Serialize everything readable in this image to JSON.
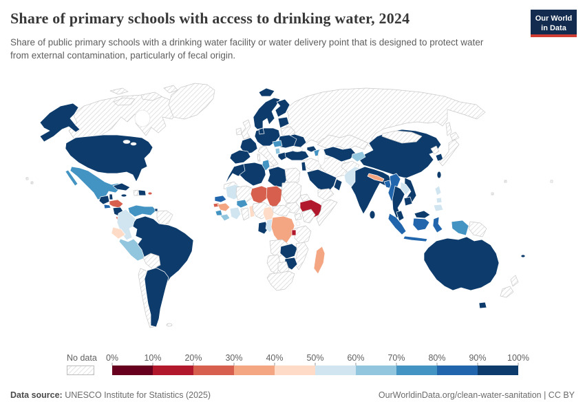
{
  "header": {
    "title": "Share of primary schools with access to drinking water, 2024",
    "subtitle": "Share of public primary schools with a drinking water facility or water delivery point that is designed to protect water from external contamination, particularly of fecal origin.",
    "logo": {
      "line1": "Our World",
      "line2": "in Data",
      "bg_color": "#122b4e",
      "accent_color": "#d13d33"
    }
  },
  "footer": {
    "datasource_label": "Data source:",
    "datasource_value": " UNESCO Institute for Statistics (2025)",
    "link": "OurWorldinData.org/clean-water-sanitation | CC BY"
  },
  "chart_data": {
    "type": "choropleth",
    "title": "Share of primary schools with access to drinking water, 2024",
    "year": "2024",
    "unit": "%",
    "no_data_label": "No data",
    "legend": {
      "tick_labels": [
        "0%",
        "10%",
        "20%",
        "30%",
        "40%",
        "50%",
        "60%",
        "70%",
        "80%",
        "90%",
        "100%"
      ],
      "position": "bottom"
    },
    "bins": [
      {
        "label": "0-10%",
        "color": "#67001f"
      },
      {
        "label": "10-20%",
        "color": "#b2182b"
      },
      {
        "label": "20-30%",
        "color": "#d6604d"
      },
      {
        "label": "30-40%",
        "color": "#f4a582"
      },
      {
        "label": "40-50%",
        "color": "#fddbc7"
      },
      {
        "label": "50-60%",
        "color": "#d1e5f0"
      },
      {
        "label": "60-70%",
        "color": "#92c5de"
      },
      {
        "label": "70-80%",
        "color": "#4393c3"
      },
      {
        "label": "80-90%",
        "color": "#2166ac"
      },
      {
        "label": "90-100%",
        "color": "#0d3c6c"
      }
    ],
    "regions": {
      "russia": -1,
      "canada": -1,
      "arctic-islands": -1,
      "greenland": -1,
      "usa": 9,
      "mexico": 7,
      "guatemala": 9,
      "belize": 9,
      "el-salvador": 8,
      "honduras": 2,
      "nicaragua": 9,
      "costa-rica": 2,
      "panama": 9,
      "cuba": 9,
      "jamaica": 9,
      "haiti": -1,
      "dominican-republic": 9,
      "puerto-rico": 2,
      "venezuela": 7,
      "trinidad-tobago": 9,
      "guyanas": -1,
      "colombia": 5,
      "ecuador": 4,
      "peru": 6,
      "brazil": 9,
      "bolivia": -1,
      "chile": -1,
      "argentina": 9,
      "falkland-islands": -1,
      "iceland": 9,
      "ireland": -1,
      "united-kingdom": -1,
      "scandinavia": 9,
      "finland": 9,
      "denmark": 9,
      "baltics": 9,
      "belarus": -1,
      "ukraine": 9,
      "balkans": 9,
      "central-europe": 9,
      "france": 9,
      "iberia": 9,
      "italy": -1,
      "hungary": 7,
      "albania": 6,
      "greece": 9,
      "turkey": 9,
      "georgia": 9,
      "azerbaijan": 7,
      "syria-iraq": -1,
      "israel-jordan": 9,
      "iran": -1,
      "saudi-arabia": 9,
      "yemen": -1,
      "oman": 9,
      "kazakhstan": -1,
      "uzbekistan-turkmenistan": 9,
      "kyrgyzstan-tajikistan": 6,
      "afghanistan": -1,
      "pakistan": 5,
      "india": 9,
      "nepal": 3,
      "bangladesh": 8,
      "sri-lanka": 9,
      "china": 9,
      "mongolia": -1,
      "north-korea": -1,
      "south-korea": 9,
      "japan": -1,
      "taiwan": 9,
      "myanmar": 8,
      "thailand": 9,
      "vietnam": 9,
      "cambodia": 9,
      "laos": 5,
      "malaysia": 9,
      "philippines": 5,
      "indonesia": 8,
      "west-papua": 7,
      "papua-new-guinea": -1,
      "australia": 9,
      "new-zealand": -1,
      "fiji": 9,
      "pacific-islands": -1,
      "hawaii": -1,
      "morocco": 9,
      "western-sahara": -1,
      "algeria": 9,
      "tunisia": 7,
      "libya": 9,
      "egypt": -1,
      "mauritania": 5,
      "mali": -1,
      "niger": 2,
      "chad": 2,
      "sudan": -1,
      "south-sudan": -1,
      "eritrea": -1,
      "djibouti": 8,
      "ethiopia": 1,
      "somalia": -1,
      "senegal": 8,
      "guinea-bissau": 2,
      "guinea": 3,
      "sierra-leone": 7,
      "liberia": 6,
      "ivory-coast": 5,
      "burkina-faso": 7,
      "ghana": -1,
      "togo-benin": 4,
      "nigeria": -1,
      "cameroon": 4,
      "central-african-republic": -1,
      "uganda": -1,
      "kenya": -1,
      "gabon": 9,
      "congo": 5,
      "dr-congo": 3,
      "tanzania": -1,
      "rwanda-burundi": 1,
      "angola": -1,
      "zambia": 9,
      "mozambique": -1,
      "zimbabwe": 9,
      "namibia": -1,
      "botswana": -1,
      "south-africa": -1,
      "madagascar": 3
    }
  }
}
